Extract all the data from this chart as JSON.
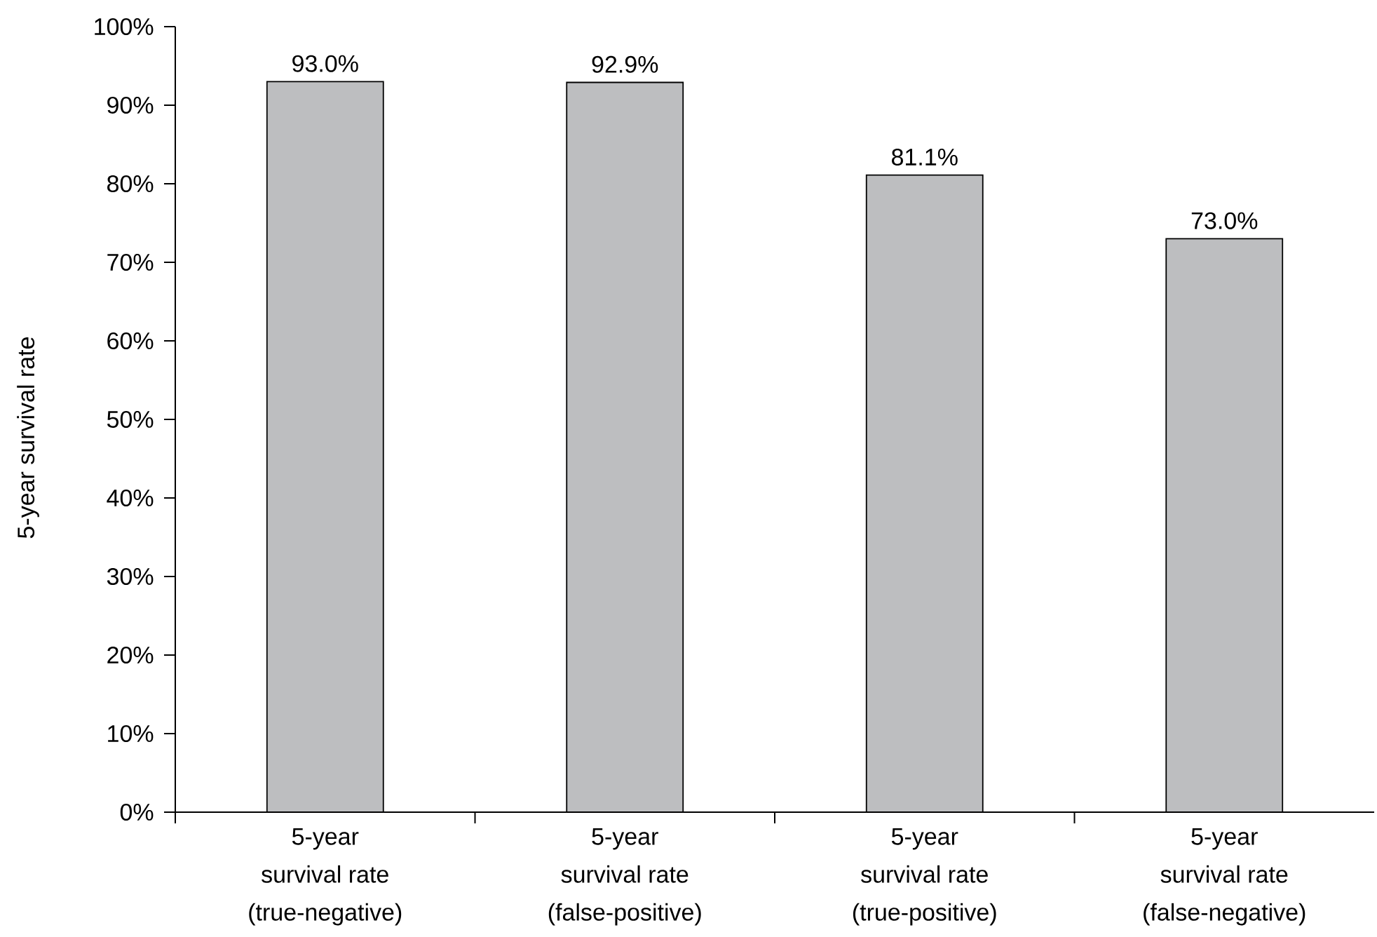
{
  "chart_data": {
    "type": "bar",
    "ylabel": "5-year survival rate",
    "categories": [
      "5-year survival rate (true-negative)",
      "5-year survival rate (false-positive)",
      "5-year survival rate (true-positive)",
      "5-year survival rate (false-negative)"
    ],
    "values": [
      93.0,
      92.9,
      81.1,
      73.0
    ],
    "value_labels": [
      "93.0%",
      "92.9%",
      "81.1%",
      "73.0%"
    ],
    "color": "#bdbec0",
    "ylim": [
      0,
      100
    ],
    "yticks": [
      {
        "value": 0,
        "label": "0%"
      },
      {
        "value": 10,
        "label": "10%"
      },
      {
        "value": 20,
        "label": "20%"
      },
      {
        "value": 30,
        "label": "30%"
      },
      {
        "value": 40,
        "label": "40%"
      },
      {
        "value": 50,
        "label": "50%"
      },
      {
        "value": 60,
        "label": "60%"
      },
      {
        "value": 70,
        "label": "70%"
      },
      {
        "value": 80,
        "label": "80%"
      },
      {
        "value": 90,
        "label": "90%"
      },
      {
        "value": 100,
        "label": "100%"
      }
    ]
  }
}
